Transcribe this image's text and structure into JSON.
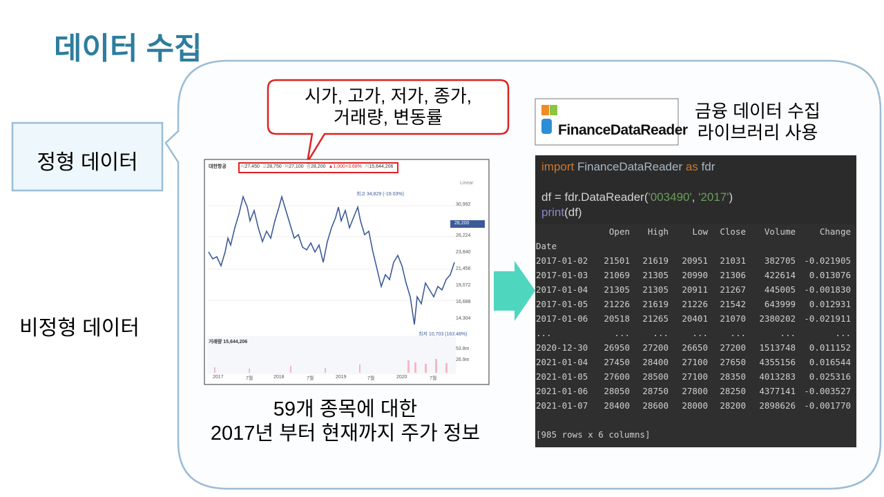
{
  "header": {
    "title": "데이터 수집"
  },
  "labels": {
    "structured": "정형 데이터",
    "unstructured": "비정형 데이터"
  },
  "callout": {
    "lines": [
      "시가, 고가, 저가, 종가,",
      "거래량, 변동률"
    ]
  },
  "stock_chart": {
    "name": "대한항공",
    "quote": [
      {
        "label": "시",
        "value": "27,450"
      },
      {
        "label": "고",
        "value": "28,750"
      },
      {
        "label": "저",
        "value": "27,100"
      },
      {
        "label": "종",
        "value": "28,200"
      },
      {
        "label": "▲",
        "value": "1,000"
      },
      {
        "label": "+",
        "value": "3.68%"
      },
      {
        "label": "거",
        "value": "15,644,206"
      }
    ],
    "scale": "Linear",
    "high_note": "최고 34,829 (-19.03%)",
    "low_note": "최저 10,703 (163.48%)",
    "current": "28,200",
    "yticks": [
      "30,992",
      "26,224",
      "23,840",
      "21,456",
      "19,072",
      "16,688",
      "14,304"
    ],
    "volume_label": "거래량 15,644,206",
    "volume_ticks": [
      "53.8m",
      "26.9m"
    ],
    "xticks": [
      "2017",
      "7월",
      "2018",
      "7월",
      "2019",
      "7월",
      "2020",
      "7월"
    ]
  },
  "caption": {
    "lines": [
      "59개 종목에 대한",
      "2017년 부터 현재까지 주가 정보"
    ]
  },
  "library": {
    "logo": "FinanceDataReader",
    "lines": [
      "금융 데이터 수집",
      "라이브러리 사용"
    ]
  },
  "code": {
    "lines": [
      [
        {
          "text": "import",
          "color": "#cc7832"
        },
        {
          "text": " FinanceDataReader ",
          "color": "#a9b7c6"
        },
        {
          "text": "as",
          "color": "#cc7832"
        },
        {
          "text": " fdr",
          "color": "#a9b7c6"
        }
      ],
      [
        {
          "text": "df = fdr.DataReader(",
          "color": "#d4d4d4"
        },
        {
          "text": "'003490'",
          "color": "#6a9f59"
        },
        {
          "text": ", ",
          "color": "#d4d4d4"
        },
        {
          "text": "'2017'",
          "color": "#6a9f59"
        },
        {
          "text": ")",
          "color": "#d4d4d4"
        }
      ],
      [
        {
          "text": "print",
          "color": "#8888c6"
        },
        {
          "text": "(df)",
          "color": "#d4d4d4"
        }
      ]
    ]
  },
  "output": {
    "columns": [
      "Open",
      "High",
      "Low",
      "Close",
      "Volume",
      "Change"
    ],
    "index_name": "Date",
    "rows": [
      [
        "2017-01-02",
        "21501",
        "21619",
        "20951",
        "21031",
        "382705",
        "-0.021905"
      ],
      [
        "2017-01-03",
        "21069",
        "21305",
        "20990",
        "21306",
        "422614",
        "0.013076"
      ],
      [
        "2017-01-04",
        "21305",
        "21305",
        "20911",
        "21267",
        "445005",
        "-0.001830"
      ],
      [
        "2017-01-05",
        "21226",
        "21619",
        "21226",
        "21542",
        "643999",
        "0.012931"
      ],
      [
        "2017-01-06",
        "20518",
        "21265",
        "20401",
        "21070",
        "2380202",
        "-0.021911"
      ],
      [
        "...",
        "...",
        "...",
        "...",
        "...",
        "...",
        "..."
      ],
      [
        "2020-12-30",
        "26950",
        "27200",
        "26650",
        "27200",
        "1513748",
        "0.011152"
      ],
      [
        "2021-01-04",
        "27450",
        "28400",
        "27100",
        "27650",
        "4355156",
        "0.016544"
      ],
      [
        "2021-01-05",
        "27600",
        "28500",
        "27100",
        "28350",
        "4013283",
        "0.025316"
      ],
      [
        "2021-01-06",
        "28050",
        "28750",
        "27800",
        "28250",
        "4377141",
        "-0.003527"
      ],
      [
        "2021-01-07",
        "28400",
        "28600",
        "28000",
        "28200",
        "2898626",
        "-0.001770"
      ]
    ],
    "footer": "[985 rows x 6 columns]"
  }
}
